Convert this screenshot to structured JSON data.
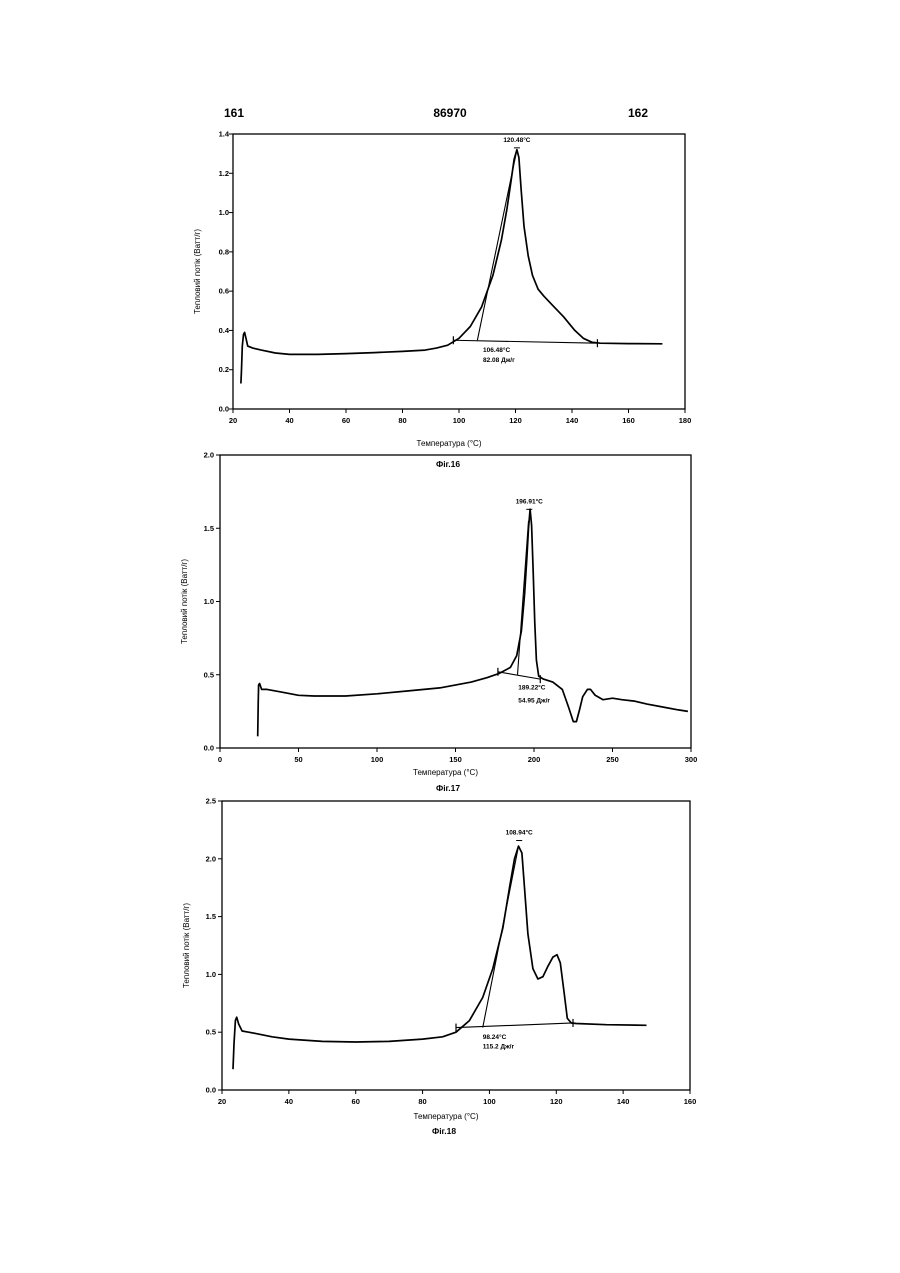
{
  "page_header": {
    "left": "161",
    "center": "86970",
    "right": "162"
  },
  "chart_data": [
    {
      "type": "line",
      "caption": "Фіг.16",
      "xlabel": "Температура (°C)",
      "ylabel": "Тепловий потік (Ватт/г)",
      "xlim": [
        20,
        180
      ],
      "ylim": [
        0,
        1.4
      ],
      "xticks": [
        "20",
        "40",
        "60",
        "80",
        "100",
        "120",
        "140",
        "160",
        "180"
      ],
      "yticks": [
        "0.0",
        "0.2",
        "0.4",
        "0.6",
        "0.8",
        "1.0",
        "1.2",
        "1.4"
      ],
      "series": [
        {
          "points": [
            [
              22.8,
              0.13
            ],
            [
              23.0,
              0.2
            ],
            [
              23.3,
              0.32
            ],
            [
              23.7,
              0.38
            ],
            [
              24.1,
              0.39
            ],
            [
              24.6,
              0.36
            ],
            [
              25.2,
              0.32
            ],
            [
              27,
              0.31
            ],
            [
              30,
              0.3
            ],
            [
              35,
              0.285
            ],
            [
              40,
              0.278
            ],
            [
              50,
              0.278
            ],
            [
              60,
              0.282
            ],
            [
              70,
              0.287
            ],
            [
              80,
              0.293
            ],
            [
              88,
              0.3
            ],
            [
              92,
              0.31
            ],
            [
              96,
              0.325
            ],
            [
              100,
              0.36
            ],
            [
              104,
              0.42
            ],
            [
              108,
              0.52
            ],
            [
              112,
              0.68
            ],
            [
              115,
              0.86
            ],
            [
              117,
              1.02
            ],
            [
              118.5,
              1.17
            ],
            [
              119.5,
              1.27
            ],
            [
              120.5,
              1.32
            ],
            [
              121.2,
              1.28
            ],
            [
              122,
              1.12
            ],
            [
              123,
              0.93
            ],
            [
              124.5,
              0.78
            ],
            [
              126,
              0.68
            ],
            [
              128,
              0.61
            ],
            [
              130,
              0.575
            ],
            [
              133,
              0.53
            ],
            [
              137,
              0.47
            ],
            [
              141,
              0.4
            ],
            [
              144,
              0.36
            ],
            [
              147,
              0.34
            ],
            [
              150,
              0.335
            ],
            [
              160,
              0.333
            ],
            [
              172,
              0.332
            ]
          ]
        }
      ],
      "baseline": {
        "x": [
          98,
          149
        ],
        "y": [
          0.35,
          0.335
        ]
      },
      "tangent": {
        "x": [
          106.5,
          120.5
        ],
        "y": [
          0.35,
          1.32
        ]
      },
      "annotations": [
        {
          "text": "120.48°C",
          "x": 120.5,
          "y": 1.36
        },
        {
          "text": "106.48°C",
          "x": 108.5,
          "y": 0.29
        },
        {
          "text": "82.08 Дж/г",
          "x": 108.5,
          "y": 0.24
        }
      ]
    },
    {
      "type": "line",
      "caption": "Фіг.17",
      "xlabel": "Температура (°C)",
      "ylabel": "Тепловий потік (Ватт/г)",
      "xlim": [
        0,
        300
      ],
      "ylim": [
        0,
        2.0
      ],
      "xticks": [
        "0",
        "50",
        "100",
        "150",
        "200",
        "250",
        "300"
      ],
      "yticks": [
        "0.0",
        "0.5",
        "1.0",
        "1.5",
        "2.0"
      ],
      "series": [
        {
          "points": [
            [
              24.0,
              0.08
            ],
            [
              24.3,
              0.3
            ],
            [
              24.6,
              0.43
            ],
            [
              25.2,
              0.44
            ],
            [
              26.5,
              0.4
            ],
            [
              30,
              0.4
            ],
            [
              40,
              0.38
            ],
            [
              50,
              0.36
            ],
            [
              60,
              0.355
            ],
            [
              80,
              0.355
            ],
            [
              100,
              0.37
            ],
            [
              120,
              0.39
            ],
            [
              140,
              0.41
            ],
            [
              160,
              0.45
            ],
            [
              170,
              0.48
            ],
            [
              178,
              0.51
            ],
            [
              185,
              0.55
            ],
            [
              189,
              0.63
            ],
            [
              192,
              0.8
            ],
            [
              194,
              1.05
            ],
            [
              195.5,
              1.3
            ],
            [
              196.5,
              1.5
            ],
            [
              197.5,
              1.63
            ],
            [
              198.5,
              1.52
            ],
            [
              199.5,
              1.2
            ],
            [
              200.5,
              0.85
            ],
            [
              201.5,
              0.6
            ],
            [
              203,
              0.49
            ],
            [
              206,
              0.47
            ],
            [
              212,
              0.45
            ],
            [
              218,
              0.4
            ],
            [
              222,
              0.28
            ],
            [
              225,
              0.18
            ],
            [
              227,
              0.18
            ],
            [
              229,
              0.26
            ],
            [
              231,
              0.35
            ],
            [
              234,
              0.4
            ],
            [
              236,
              0.4
            ],
            [
              239,
              0.36
            ],
            [
              244,
              0.33
            ],
            [
              250,
              0.34
            ],
            [
              256,
              0.33
            ],
            [
              264,
              0.32
            ],
            [
              272,
              0.3
            ],
            [
              282,
              0.28
            ],
            [
              292,
              0.26
            ],
            [
              298,
              0.25
            ]
          ]
        }
      ],
      "baseline": {
        "x": [
          177,
          204
        ],
        "y": [
          0.52,
          0.47
        ]
      },
      "tangent": {
        "x": [
          189.5,
          196.5
        ],
        "y": [
          0.5,
          1.55
        ]
      },
      "annotations": [
        {
          "text": "196.91°C",
          "x": 197,
          "y": 1.67
        },
        {
          "text": "189.22°C",
          "x": 190,
          "y": 0.4
        },
        {
          "text": "54.95 Дж/г",
          "x": 190,
          "y": 0.31
        }
      ]
    },
    {
      "type": "line",
      "caption": "Фіг.18",
      "xlabel": "Температура (°C)",
      "ylabel": "Тепловий потік (Ватт/г)",
      "xlim": [
        20,
        160
      ],
      "ylim": [
        0,
        2.5
      ],
      "xticks": [
        "20",
        "40",
        "60",
        "80",
        "100",
        "120",
        "140",
        "160"
      ],
      "yticks": [
        "0.0",
        "0.5",
        "1.0",
        "1.5",
        "2.0",
        "2.5"
      ],
      "series": [
        {
          "points": [
            [
              23.3,
              0.18
            ],
            [
              23.6,
              0.4
            ],
            [
              24.0,
              0.6
            ],
            [
              24.4,
              0.63
            ],
            [
              25.0,
              0.57
            ],
            [
              26,
              0.51
            ],
            [
              28,
              0.5
            ],
            [
              30,
              0.49
            ],
            [
              35,
              0.46
            ],
            [
              40,
              0.44
            ],
            [
              50,
              0.42
            ],
            [
              60,
              0.415
            ],
            [
              70,
              0.42
            ],
            [
              80,
              0.44
            ],
            [
              86,
              0.46
            ],
            [
              90,
              0.5
            ],
            [
              94,
              0.6
            ],
            [
              98,
              0.8
            ],
            [
              101,
              1.05
            ],
            [
              104,
              1.4
            ],
            [
              106,
              1.75
            ],
            [
              107.5,
              2.0
            ],
            [
              108.7,
              2.11
            ],
            [
              109.7,
              2.05
            ],
            [
              110.5,
              1.75
            ],
            [
              111.5,
              1.35
            ],
            [
              113,
              1.05
            ],
            [
              114.5,
              0.96
            ],
            [
              116,
              0.98
            ],
            [
              117.5,
              1.07
            ],
            [
              119,
              1.15
            ],
            [
              120.2,
              1.17
            ],
            [
              121.2,
              1.1
            ],
            [
              122.3,
              0.85
            ],
            [
              123.3,
              0.62
            ],
            [
              124.5,
              0.58
            ],
            [
              126,
              0.575
            ],
            [
              135,
              0.565
            ],
            [
              147,
              0.56
            ]
          ]
        }
      ],
      "baseline": {
        "x": [
          90,
          125
        ],
        "y": [
          0.54,
          0.58
        ]
      },
      "tangent": {
        "x": [
          98,
          108.5
        ],
        "y": [
          0.54,
          2.08
        ]
      },
      "annotations": [
        {
          "text": "108.94°C",
          "x": 108.9,
          "y": 2.21
        },
        {
          "text": "98.24°C",
          "x": 98,
          "y": 0.44
        },
        {
          "text": "115.2 Дж/г",
          "x": 98,
          "y": 0.36
        }
      ]
    }
  ]
}
